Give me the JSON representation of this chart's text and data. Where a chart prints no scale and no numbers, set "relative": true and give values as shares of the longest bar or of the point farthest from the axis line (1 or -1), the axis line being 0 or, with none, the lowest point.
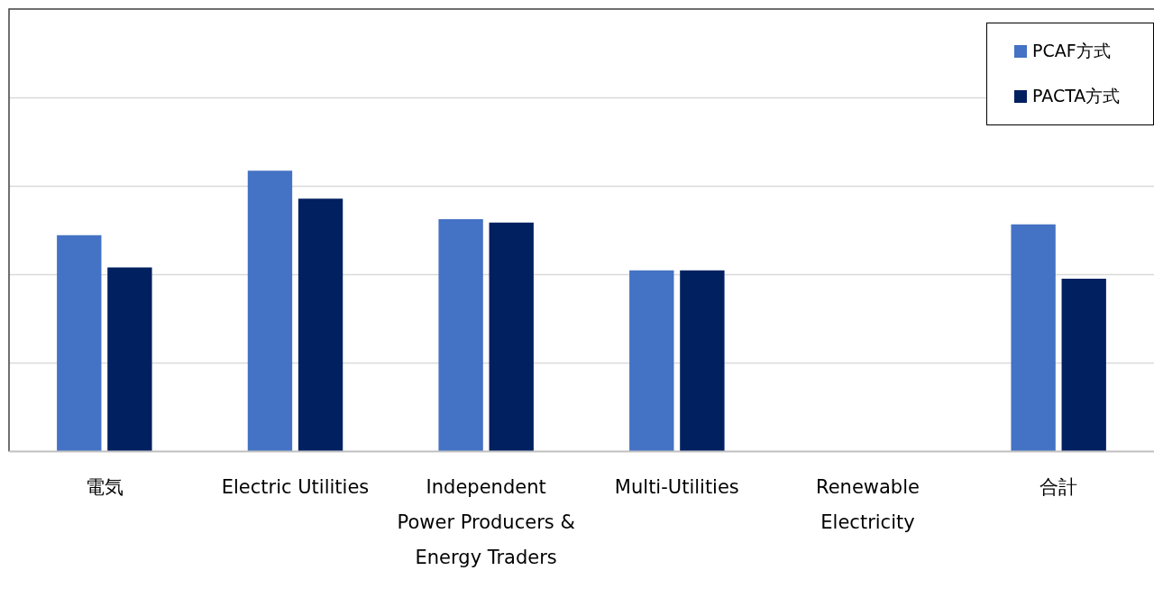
{
  "chart_data": {
    "type": "bar",
    "relative": true,
    "grid": "y",
    "legend": "top right",
    "categories": [
      "電気",
      "Electric Utilities",
      "Independent Power Producers & Energy Traders",
      "Multi-Utilities",
      "Renewable Electricity",
      "合計"
    ],
    "series": [
      {
        "name": "PCAF方式",
        "color": "#4472c4",
        "values": [
          0.77,
          1,
          0.827,
          0.645,
          null,
          0.809
        ]
      },
      {
        "name": "PACTA方式",
        "color": "#002060",
        "values": [
          0.655,
          0.9,
          0.815,
          0.645,
          null,
          0.615
        ]
      }
    ]
  }
}
